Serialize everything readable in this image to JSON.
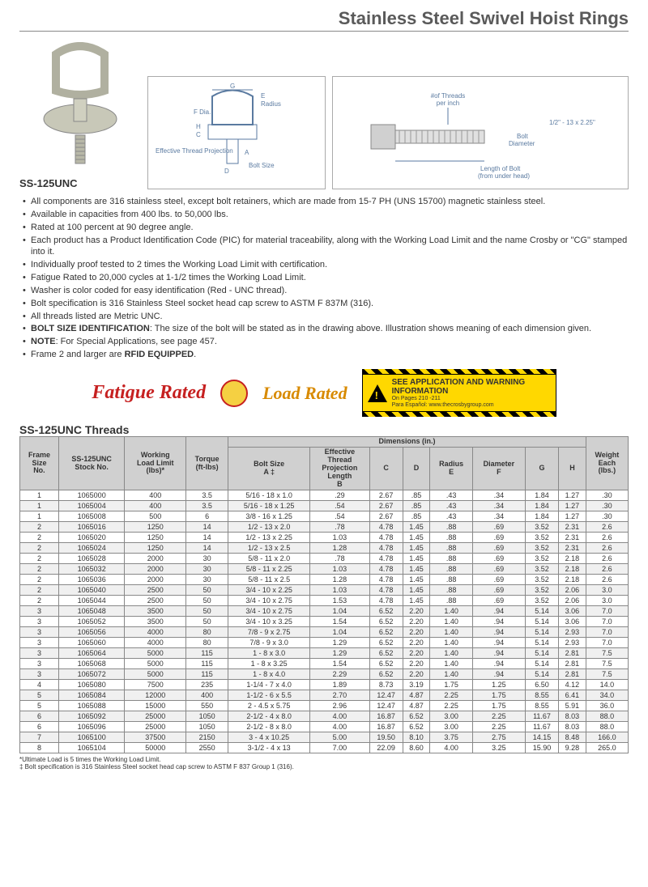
{
  "title": "Stainless Steel Swivel Hoist Rings",
  "part_no": "SS-125UNC",
  "diagram_labels": {
    "g": "G",
    "e": "E",
    "radius": "Radius",
    "fdia": "F Dia.",
    "h": "H",
    "a": "A",
    "etp": "Effective Thread Projection",
    "d": "D",
    "c": "C",
    "bolt_size": "Bolt Size",
    "threads_per_inch": "#of Threads\nper inch",
    "example": "1/2\" - 13 x 2.25\"",
    "bolt_dia": "Bolt\nDiameter",
    "bolt_len": "Length of Bolt\n(from under head)"
  },
  "bullets": [
    "All components are 316 stainless steel, except bolt retainers, which are made from 15-7 PH (UNS 15700) magnetic stainless steel.",
    "Available in capacities from 400 lbs. to 50,000 lbs.",
    "Rated at 100 percent at 90 degree angle.",
    "Each product has a Product Identification Code (PIC) for material traceability, along with the Working Load Limit and the name Crosby or \"CG\" stamped into it.",
    "Individually proof tested to 2 times the Working Load Limit with certification.",
    "Fatigue Rated to 20,000 cycles at 1-1/2 times the Working Load Limit.",
    "Washer is color coded for easy identification (Red - UNC thread).",
    "Bolt specification is 316 Stainless Steel socket head cap screw to ASTM F 837M (316).",
    "All threads listed are Metric UNC.",
    "<b>BOLT SIZE IDENTIFICATION</b>: The size of the bolt will be stated as in the drawing above. Illustration shows meaning of each dimension given.",
    "<b>NOTE</b>: For Special Applications, see page 457.",
    "Frame 2 and larger are <b>RFID EQUIPPED</b>."
  ],
  "badges": {
    "fatigue": "Fatigue Rated",
    "load": "Load Rated",
    "warn_title": "SEE APPLICATION AND WARNING INFORMATION",
    "warn_sub": "On Pages 210 -211",
    "warn_sub2": "Para Español: www.thecrosbygroup.com"
  },
  "table": {
    "title": "SS-125UNC Threads",
    "group_header": "Dimensions (in.)",
    "columns": [
      "Frame\nSize\nNo.",
      "SS-125UNC\nStock No.",
      "Working\nLoad Limit\n(lbs)*",
      "Torque\n(ft-lbs)",
      "Bolt Size\nA ‡",
      "Effective\nThread\nProjection\nLength\nB",
      "C",
      "D",
      "Radius\nE",
      "Diameter\nF",
      "G",
      "H",
      "Weight\nEach\n(lbs.)"
    ],
    "rows": [
      [
        "1",
        "1065000",
        "400",
        "3.5",
        "5/16 - 18 x 1.0",
        ".29",
        "2.67",
        ".85",
        ".43",
        ".34",
        "1.84",
        "1.27",
        ".30"
      ],
      [
        "1",
        "1065004",
        "400",
        "3.5",
        "5/16 - 18 x 1.25",
        ".54",
        "2.67",
        ".85",
        ".43",
        ".34",
        "1.84",
        "1.27",
        ".30"
      ],
      [
        "1",
        "1065008",
        "500",
        "6",
        "3/8 - 16 x 1.25",
        ".54",
        "2.67",
        ".85",
        ".43",
        ".34",
        "1.84",
        "1.27",
        ".30"
      ],
      [
        "2",
        "1065016",
        "1250",
        "14",
        "1/2 - 13 x 2.0",
        ".78",
        "4.78",
        "1.45",
        ".88",
        ".69",
        "3.52",
        "2.31",
        "2.6"
      ],
      [
        "2",
        "1065020",
        "1250",
        "14",
        "1/2 - 13 x 2.25",
        "1.03",
        "4.78",
        "1.45",
        ".88",
        ".69",
        "3.52",
        "2.31",
        "2.6"
      ],
      [
        "2",
        "1065024",
        "1250",
        "14",
        "1/2 - 13 x 2.5",
        "1.28",
        "4.78",
        "1.45",
        ".88",
        ".69",
        "3.52",
        "2.31",
        "2.6"
      ],
      [
        "2",
        "1065028",
        "2000",
        "30",
        "5/8 - 11 x 2.0",
        ".78",
        "4.78",
        "1.45",
        ".88",
        ".69",
        "3.52",
        "2.18",
        "2.6"
      ],
      [
        "2",
        "1065032",
        "2000",
        "30",
        "5/8 - 11 x 2.25",
        "1.03",
        "4.78",
        "1.45",
        ".88",
        ".69",
        "3.52",
        "2.18",
        "2.6"
      ],
      [
        "2",
        "1065036",
        "2000",
        "30",
        "5/8 - 11 x 2.5",
        "1.28",
        "4.78",
        "1.45",
        ".88",
        ".69",
        "3.52",
        "2.18",
        "2.6"
      ],
      [
        "2",
        "1065040",
        "2500",
        "50",
        "3/4 - 10 x 2.25",
        "1.03",
        "4.78",
        "1.45",
        ".88",
        ".69",
        "3.52",
        "2.06",
        "3.0"
      ],
      [
        "2",
        "1065044",
        "2500",
        "50",
        "3/4 - 10 x 2.75",
        "1.53",
        "4.78",
        "1.45",
        ".88",
        ".69",
        "3.52",
        "2.06",
        "3.0"
      ],
      [
        "3",
        "1065048",
        "3500",
        "50",
        "3/4 - 10 x 2.75",
        "1.04",
        "6.52",
        "2.20",
        "1.40",
        ".94",
        "5.14",
        "3.06",
        "7.0"
      ],
      [
        "3",
        "1065052",
        "3500",
        "50",
        "3/4 - 10 x 3.25",
        "1.54",
        "6.52",
        "2.20",
        "1.40",
        ".94",
        "5.14",
        "3.06",
        "7.0"
      ],
      [
        "3",
        "1065056",
        "4000",
        "80",
        "7/8 - 9 x 2.75",
        "1.04",
        "6.52",
        "2.20",
        "1.40",
        ".94",
        "5.14",
        "2.93",
        "7.0"
      ],
      [
        "3",
        "1065060",
        "4000",
        "80",
        "7/8 - 9 x 3.0",
        "1.29",
        "6.52",
        "2.20",
        "1.40",
        ".94",
        "5.14",
        "2.93",
        "7.0"
      ],
      [
        "3",
        "1065064",
        "5000",
        "115",
        "1 - 8 x 3.0",
        "1.29",
        "6.52",
        "2.20",
        "1.40",
        ".94",
        "5.14",
        "2.81",
        "7.5"
      ],
      [
        "3",
        "1065068",
        "5000",
        "115",
        "1 - 8 x 3.25",
        "1.54",
        "6.52",
        "2.20",
        "1.40",
        ".94",
        "5.14",
        "2.81",
        "7.5"
      ],
      [
        "3",
        "1065072",
        "5000",
        "115",
        "1 - 8 x 4.0",
        "2.29",
        "6.52",
        "2.20",
        "1.40",
        ".94",
        "5.14",
        "2.81",
        "7.5"
      ],
      [
        "4",
        "1065080",
        "7500",
        "235",
        "1-1/4 - 7 x 4.0",
        "1.89",
        "8.73",
        "3.19",
        "1.75",
        "1.25",
        "6.50",
        "4.12",
        "14.0"
      ],
      [
        "5",
        "1065084",
        "12000",
        "400",
        "1-1/2 - 6 x 5.5",
        "2.70",
        "12.47",
        "4.87",
        "2.25",
        "1.75",
        "8.55",
        "6.41",
        "34.0"
      ],
      [
        "5",
        "1065088",
        "15000",
        "550",
        "2 - 4.5 x 5.75",
        "2.96",
        "12.47",
        "4.87",
        "2.25",
        "1.75",
        "8.55",
        "5.91",
        "36.0"
      ],
      [
        "6",
        "1065092",
        "25000",
        "1050",
        "2-1/2 - 4 x 8.0",
        "4.00",
        "16.87",
        "6.52",
        "3.00",
        "2.25",
        "11.67",
        "8.03",
        "88.0"
      ],
      [
        "6",
        "1065096",
        "25000",
        "1050",
        "2-1/2 - 8 x 8.0",
        "4.00",
        "16.87",
        "6.52",
        "3.00",
        "2.25",
        "11.67",
        "8.03",
        "88.0"
      ],
      [
        "7",
        "1065100",
        "37500",
        "2150",
        "3 - 4 x 10.25",
        "5.00",
        "19.50",
        "8.10",
        "3.75",
        "2.75",
        "14.15",
        "8.48",
        "166.0"
      ],
      [
        "8",
        "1065104",
        "50000",
        "2550",
        "3-1/2 - 4 x 13",
        "7.00",
        "22.09",
        "8.60",
        "4.00",
        "3.25",
        "15.90",
        "9.28",
        "265.0"
      ]
    ],
    "footnotes": [
      "*Ultimate Load is 5 times the Working Load Limit.",
      "‡ Bolt specification is 316 Stainless Steel socket head cap screw to ASTM F 837 Group 1 (316)."
    ]
  }
}
